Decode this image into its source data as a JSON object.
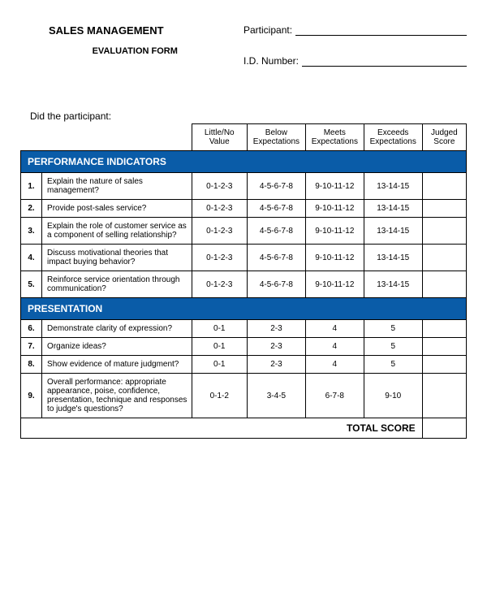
{
  "header": {
    "title": "SALES MANAGEMENT",
    "subtitle": "EVALUATION FORM",
    "participant_label": "Participant:",
    "id_label": "I.D. Number:"
  },
  "prompt": "Did the participant:",
  "columns": {
    "c1": "Little/No Value",
    "c2": "Below Expectations",
    "c3": "Meets Expectations",
    "c4": "Exceeds Expectations",
    "c5": "Judged Score"
  },
  "sections": {
    "s1": "PERFORMANCE INDICATORS",
    "s2": "PRESENTATION"
  },
  "rows": {
    "r1": {
      "n": "1.",
      "q": "Explain the nature of sales management?",
      "v1": "0-1-2-3",
      "v2": "4-5-6-7-8",
      "v3": "9-10-11-12",
      "v4": "13-14-15"
    },
    "r2": {
      "n": "2.",
      "q": "Provide post-sales service?",
      "v1": "0-1-2-3",
      "v2": "4-5-6-7-8",
      "v3": "9-10-11-12",
      "v4": "13-14-15"
    },
    "r3": {
      "n": "3.",
      "q": "Explain the role of customer service as a component of selling relationship?",
      "v1": "0-1-2-3",
      "v2": "4-5-6-7-8",
      "v3": "9-10-11-12",
      "v4": "13-14-15"
    },
    "r4": {
      "n": "4.",
      "q": "Discuss motivational theories that impact buying behavior?",
      "v1": "0-1-2-3",
      "v2": "4-5-6-7-8",
      "v3": "9-10-11-12",
      "v4": "13-14-15"
    },
    "r5": {
      "n": "5.",
      "q": "Reinforce service orientation through communication?",
      "v1": "0-1-2-3",
      "v2": "4-5-6-7-8",
      "v3": "9-10-11-12",
      "v4": "13-14-15"
    },
    "r6": {
      "n": "6.",
      "q": "Demonstrate clarity of expression?",
      "v1": "0-1",
      "v2": "2-3",
      "v3": "4",
      "v4": "5"
    },
    "r7": {
      "n": "7.",
      "q": "Organize ideas?",
      "v1": "0-1",
      "v2": "2-3",
      "v3": "4",
      "v4": "5"
    },
    "r8": {
      "n": "8.",
      "q": "Show evidence of mature judgment?",
      "v1": "0-1",
      "v2": "2-3",
      "v3": "4",
      "v4": "5"
    },
    "r9": {
      "n": "9.",
      "q": "Overall performance: appropriate appearance, poise, confidence, presentation, technique and responses to judge's questions?",
      "v1": "0-1-2",
      "v2": "3-4-5",
      "v3": "6-7-8",
      "v4": "9-10"
    }
  },
  "total_label": "TOTAL SCORE",
  "colors": {
    "section_bg": "#0a5ca8",
    "section_fg": "#ffffff",
    "border": "#000000"
  }
}
